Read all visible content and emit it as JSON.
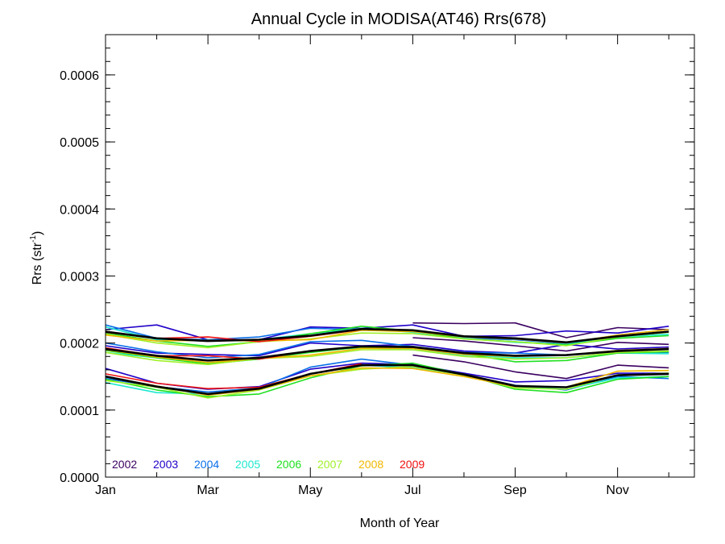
{
  "chart_data": {
    "type": "line",
    "title": "Annual Cycle in MODISA(AT46) Rrs(678)",
    "xlabel": "Month of Year",
    "ylabel": {
      "base": "Rrs (str",
      "sup": "-1",
      "close": ")"
    },
    "xlim": [
      1,
      12.5
    ],
    "ylim": [
      0,
      0.00066
    ],
    "x_ticks": [
      {
        "value": 1,
        "label": "Jan"
      },
      {
        "value": 3,
        "label": "Mar"
      },
      {
        "value": 5,
        "label": "May"
      },
      {
        "value": 7,
        "label": "Jul"
      },
      {
        "value": 9,
        "label": "Sep"
      },
      {
        "value": 11,
        "label": "Nov"
      }
    ],
    "y_ticks": [
      {
        "value": 0.0,
        "label": "0.0000"
      },
      {
        "value": 0.0001,
        "label": "0.0001"
      },
      {
        "value": 0.0002,
        "label": "0.0002"
      },
      {
        "value": 0.0003,
        "label": "0.0003"
      },
      {
        "value": 0.0004,
        "label": "0.0004"
      },
      {
        "value": 0.0005,
        "label": "0.0005"
      },
      {
        "value": 0.0006,
        "label": "0.0006"
      }
    ],
    "x": [
      1,
      2,
      3,
      4,
      5,
      6,
      7,
      8,
      9,
      10,
      11,
      12
    ],
    "legend_position": "bottom-left",
    "series": [
      {
        "name": "2002",
        "color": "#3a0060",
        "bands": [
          [
            null,
            null,
            null,
            null,
            null,
            null,
            0.00023,
            0.000229,
            0.00023,
            0.000208,
            0.000223,
            0.00022
          ],
          [
            null,
            null,
            null,
            null,
            null,
            null,
            0.000208,
            0.000203,
            0.000196,
            0.000188,
            0.000201,
            0.000198
          ],
          [
            null,
            null,
            null,
            null,
            null,
            null,
            0.000182,
            0.000172,
            0.000157,
            0.000147,
            0.000167,
            0.000163
          ]
        ]
      },
      {
        "name": "2003",
        "color": "#2000c8",
        "bands": [
          [
            0.00022,
            0.000227,
            0.000205,
            0.000205,
            0.000224,
            0.000222,
            0.000227,
            0.00021,
            0.000211,
            0.000218,
            0.000215,
            0.000225
          ],
          [
            0.000196,
            0.000185,
            0.000183,
            0.000181,
            0.0002,
            0.000196,
            0.000198,
            0.000188,
            0.000185,
            0.000198,
            0.000191,
            0.000194
          ],
          [
            0.000162,
            0.00014,
            0.000131,
            0.000135,
            0.000161,
            0.00017,
            0.000168,
            0.000155,
            0.000142,
            0.000144,
            0.000155,
            0.000155
          ]
        ]
      },
      {
        "name": "2004",
        "color": "#0a70e8",
        "bands": [
          [
            0.000227,
            0.000207,
            0.000205,
            0.000209,
            0.000222,
            0.00022,
            0.000218,
            0.000207,
            0.000205,
            0.000199,
            0.000212,
            0.00022
          ],
          [
            0.0002,
            0.000187,
            0.000178,
            0.000183,
            0.000202,
            0.000204,
            0.000195,
            0.000186,
            0.000185,
            0.000182,
            0.000187,
            0.000186
          ],
          [
            0.000147,
            0.000135,
            0.000127,
            0.000133,
            0.000164,
            0.000176,
            0.000167,
            0.000153,
            0.000137,
            0.00013,
            0.00015,
            0.000147
          ]
        ]
      },
      {
        "name": "2005",
        "color": "#1ee8d0",
        "bands": [
          [
            0.000224,
            0.000205,
            0.000203,
            0.000205,
            0.000214,
            0.000222,
            0.000216,
            0.000207,
            0.000201,
            0.000198,
            0.000209,
            0.000213
          ],
          [
            0.000186,
            0.000178,
            0.000169,
            0.000176,
            0.000188,
            0.000193,
            0.00019,
            0.000182,
            0.000178,
            0.000178,
            0.000185,
            0.000184
          ],
          [
            0.000141,
            0.000126,
            0.000124,
            0.000131,
            0.000154,
            0.000167,
            0.000163,
            0.000153,
            0.000135,
            0.000131,
            0.000148,
            0.00015
          ]
        ]
      },
      {
        "name": "2006",
        "color": "#20e020",
        "bands": [
          [
            0.000215,
            0.000203,
            0.000195,
            0.000202,
            0.000214,
            0.000225,
            0.000218,
            0.000206,
            0.000202,
            0.000197,
            0.000207,
            0.000211
          ],
          [
            0.000189,
            0.000178,
            0.000169,
            0.000176,
            0.000186,
            0.000194,
            0.000193,
            0.000184,
            0.000172,
            0.000174,
            0.000185,
            0.000187
          ],
          [
            0.000146,
            0.00013,
            0.00012,
            0.000124,
            0.000148,
            0.000166,
            0.00017,
            0.000153,
            0.000131,
            0.000126,
            0.000146,
            0.00015
          ]
        ]
      },
      {
        "name": "2007",
        "color": "#a0f028",
        "bands": [
          [
            0.000213,
            0.0002,
            0.000193,
            0.000202,
            0.000206,
            0.000215,
            0.000214,
            0.000206,
            0.000202,
            0.000196,
            0.000209,
            0.000216
          ],
          [
            0.000186,
            0.000174,
            0.000168,
            0.000177,
            0.00018,
            0.00019,
            0.00019,
            0.00018,
            0.000176,
            0.000178,
            0.000186,
            0.000188
          ],
          [
            0.000144,
            0.000134,
            0.000118,
            0.00013,
            0.000151,
            0.000161,
            0.000165,
            0.000152,
            0.000133,
            0.000131,
            0.000152,
            0.000155
          ]
        ]
      },
      {
        "name": "2008",
        "color": "#f0b800",
        "bands": [
          [
            0.000212,
            0.000203,
            0.000204,
            0.000203,
            0.000205,
            0.000219,
            0.000217,
            0.000209,
            0.000206,
            0.0002,
            0.000212,
            0.00022
          ],
          [
            0.00019,
            0.000179,
            0.000171,
            0.000177,
            0.000182,
            0.000192,
            0.000192,
            0.000183,
            0.00018,
            0.000182,
            0.000189,
            0.000192
          ],
          [
            0.00015,
            0.000136,
            0.000122,
            0.000131,
            0.000151,
            0.000163,
            0.000162,
            0.00015,
            0.000135,
            0.000134,
            0.000158,
            0.000159
          ]
        ]
      },
      {
        "name": "2009",
        "color": "#f01010",
        "bands": [
          [
            0.000216,
            0.000207,
            0.000209,
            0.000202,
            0.00021,
            0.00022,
            null,
            null,
            null,
            null,
            null,
            null
          ],
          [
            0.000193,
            0.000181,
            0.000181,
            0.000176,
            0.000188,
            0.000195,
            null,
            null,
            null,
            null,
            null,
            null
          ],
          [
            0.000154,
            0.00014,
            0.000132,
            0.000134,
            0.000154,
            0.000169,
            null,
            null,
            null,
            null,
            null,
            null
          ]
        ]
      },
      {
        "name": "",
        "color": "#000000",
        "bands": [
          [
            0.000217,
            0.000207,
            0.000203,
            0.000205,
            0.000211,
            0.000221,
            0.000219,
            0.00021,
            0.000207,
            0.000201,
            0.00021,
            0.000217
          ],
          [
            0.000191,
            0.000181,
            0.000174,
            0.000178,
            0.000188,
            0.000195,
            0.000194,
            0.000185,
            0.000181,
            0.000182,
            0.000188,
            0.000191
          ],
          [
            0.00015,
            0.000135,
            0.000124,
            0.000132,
            0.000154,
            0.000167,
            0.000167,
            0.000153,
            0.000136,
            0.000134,
            0.000152,
            0.000154
          ]
        ]
      }
    ]
  }
}
